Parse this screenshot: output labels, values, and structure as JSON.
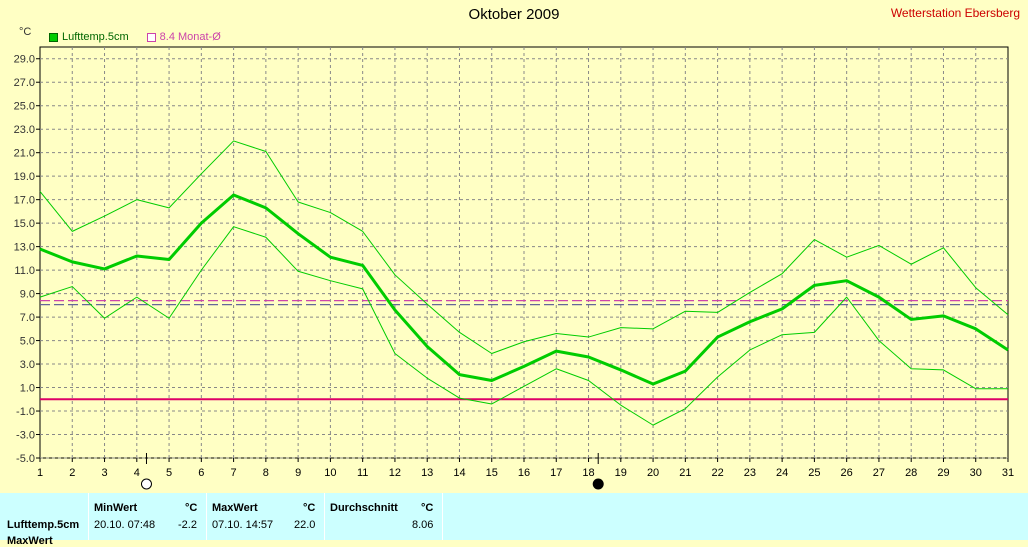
{
  "title": "Oktober 2009",
  "station": "Wetterstation Ebersberg",
  "unit": "°C",
  "legend": [
    {
      "label": "Lufttemp.5cm",
      "color": "#00cc00"
    },
    {
      "label": "8.4 Monat-Ø",
      "color": "#cc44aa"
    }
  ],
  "stats": {
    "row_label": "Lufttemp.5cm",
    "row2_label": "MaxWert",
    "min_header": "MinWert",
    "max_header": "MaxWert",
    "avg_header": "Durchschnitt",
    "unit": "°C",
    "min_date": "20.10.  07:48",
    "min_value": "-2.2",
    "max_date": "07.10.  14:57",
    "max_value": "22.0",
    "avg_value": "8.06"
  },
  "chart_data": {
    "type": "line",
    "title": "Oktober 2009",
    "ylabel": "°C",
    "xlim": [
      1,
      31
    ],
    "ylim": [
      -5,
      30
    ],
    "grid": true,
    "x": [
      1,
      2,
      3,
      4,
      5,
      6,
      7,
      8,
      9,
      10,
      11,
      12,
      13,
      14,
      15,
      16,
      17,
      18,
      19,
      20,
      21,
      22,
      23,
      24,
      25,
      26,
      27,
      28,
      29,
      30,
      31
    ],
    "x_ticks": [
      1,
      2,
      3,
      4,
      5,
      6,
      7,
      8,
      9,
      10,
      11,
      12,
      13,
      14,
      15,
      16,
      17,
      18,
      19,
      20,
      21,
      22,
      23,
      24,
      25,
      26,
      27,
      28,
      29,
      30,
      31
    ],
    "y_ticks": [
      -5.0,
      -3.0,
      -1.0,
      1.0,
      3.0,
      5.0,
      7.0,
      9.0,
      11.0,
      13.0,
      15.0,
      17.0,
      19.0,
      21.0,
      23.0,
      25.0,
      27.0,
      29.0
    ],
    "series": [
      {
        "name": "Lufttemp.5cm",
        "color": "#00cc00",
        "width": 3,
        "values": [
          12.8,
          11.7,
          11.1,
          12.2,
          11.9,
          15.0,
          17.4,
          16.3,
          14.1,
          12.1,
          11.4,
          7.6,
          4.5,
          2.1,
          1.6,
          2.8,
          4.1,
          3.6,
          2.5,
          1.3,
          2.4,
          5.3,
          6.6,
          7.7,
          9.7,
          10.1,
          8.7,
          6.8,
          7.1,
          6.0,
          4.2
        ]
      },
      {
        "color": "#00cc00",
        "width": 1,
        "values": [
          17.7,
          14.3,
          15.6,
          17.0,
          16.3,
          19.2,
          22.0,
          21.1,
          16.8,
          15.9,
          14.3,
          10.6,
          8.1,
          5.7,
          3.9,
          4.9,
          5.6,
          5.3,
          6.1,
          6.0,
          7.5,
          7.4,
          9.1,
          10.7,
          13.6,
          12.1,
          13.1,
          11.5,
          12.9,
          9.5,
          7.2
        ]
      },
      {
        "color": "#00cc00",
        "width": 1,
        "values": [
          8.7,
          9.6,
          6.9,
          8.7,
          6.9,
          11.0,
          14.7,
          13.8,
          10.9,
          10.1,
          9.4,
          3.9,
          1.8,
          0.1,
          -0.4,
          1.1,
          2.6,
          1.6,
          -0.5,
          -2.2,
          -0.8,
          1.9,
          4.2,
          5.5,
          5.7,
          8.7,
          5.0,
          2.6,
          2.5,
          0.9,
          0.9
        ]
      }
    ],
    "reference_lines": [
      {
        "value": 8.4,
        "color": "#cc44aa",
        "style": "dashed"
      },
      {
        "value": 8.06,
        "color": "#666699",
        "style": "dashed"
      },
      {
        "value": 0.0,
        "color": "#dd0066",
        "style": "solid"
      }
    ],
    "markers": [
      {
        "x": 4.3,
        "symbol": "full-moon-icon"
      },
      {
        "x": 18.3,
        "symbol": "new-moon-icon"
      }
    ]
  }
}
